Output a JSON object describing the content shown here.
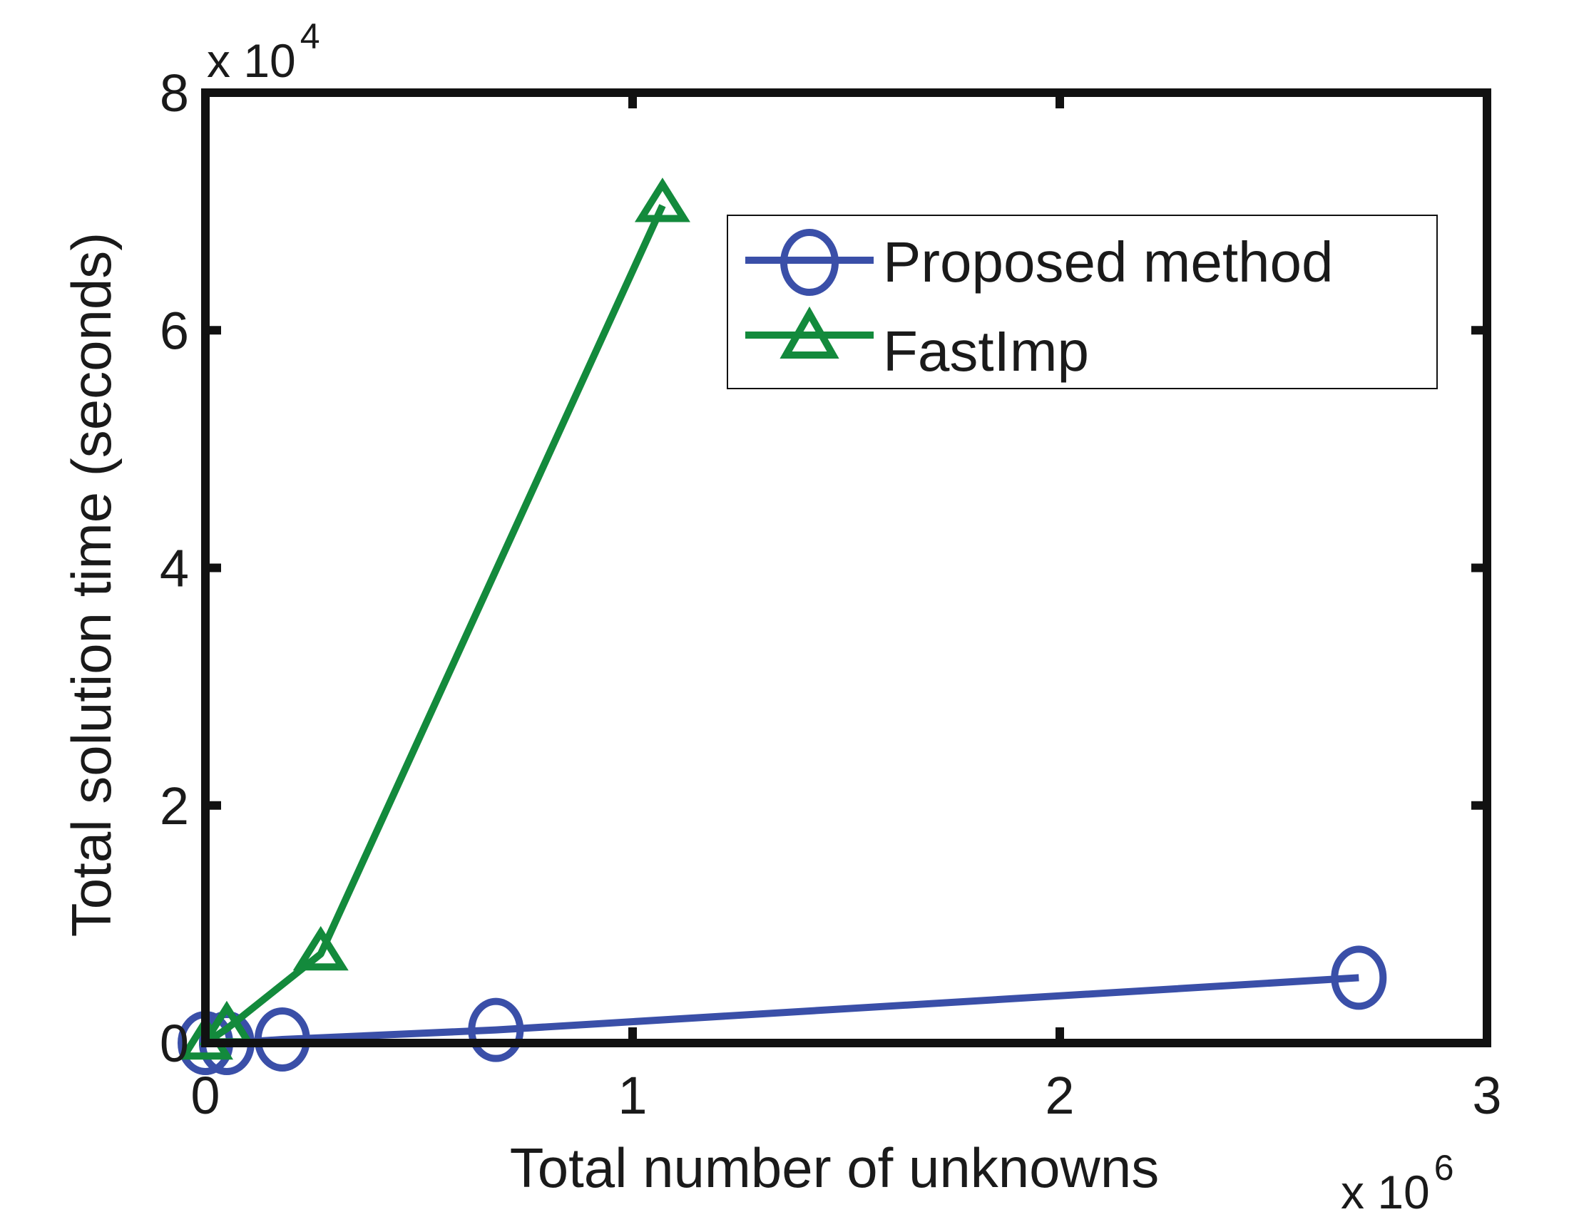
{
  "chart_data": {
    "type": "line",
    "title": "",
    "xlabel": "Total number of unknowns",
    "ylabel": "Total solution time (seconds)",
    "x_multiplier": {
      "base": "x 10",
      "exponent": "6"
    },
    "y_multiplier": {
      "base": "x 10",
      "exponent": "4"
    },
    "xlim": [
      0,
      3
    ],
    "ylim": [
      0,
      8
    ],
    "xticks": [
      "0",
      "1",
      "2",
      "3"
    ],
    "yticks": [
      "0",
      "2",
      "4",
      "6",
      "8"
    ],
    "grid": false,
    "legend_position": "top-right",
    "series": [
      {
        "name": "Proposed method",
        "color": "#3a4fa8",
        "marker": "circle",
        "x": [
          0.0,
          0.05,
          0.18,
          0.68,
          2.7
        ],
        "y": [
          0.0,
          0.0,
          0.03,
          0.11,
          0.55
        ]
      },
      {
        "name": "FastImp",
        "color": "#138a3c",
        "marker": "triangle",
        "x": [
          0.0,
          0.05,
          0.27,
          1.07
        ],
        "y": [
          0.0,
          0.12,
          0.75,
          7.05
        ]
      }
    ]
  }
}
